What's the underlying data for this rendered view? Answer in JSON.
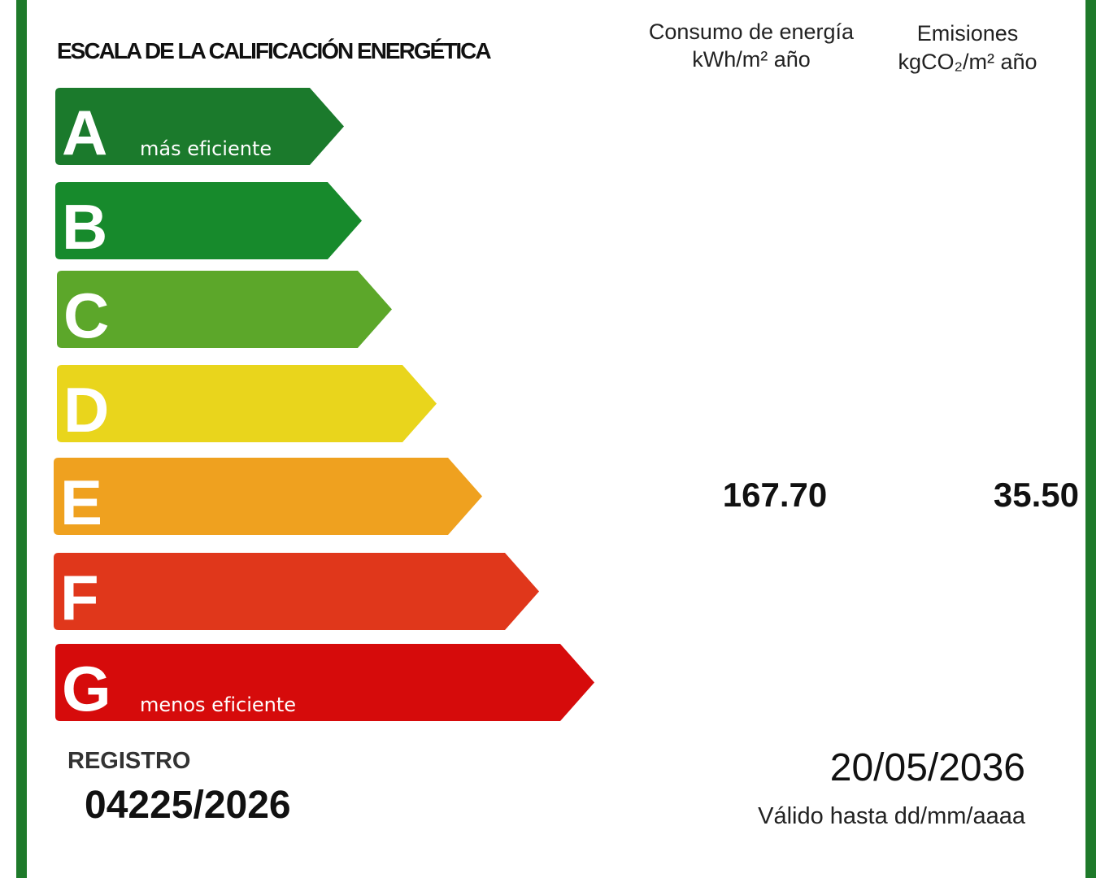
{
  "header": {
    "title": "ESCALA DE LA CALIFICACIÓN ENERGÉTICA",
    "consumption": {
      "label": "Consumo de energía",
      "unit": "kWh/m² año"
    },
    "emissions": {
      "label": "Emisiones",
      "unit": "kgCO₂/m² año"
    }
  },
  "grades": [
    {
      "letter": "A",
      "note": "más eficiente"
    },
    {
      "letter": "B"
    },
    {
      "letter": "C"
    },
    {
      "letter": "D"
    },
    {
      "letter": "E"
    },
    {
      "letter": "F"
    },
    {
      "letter": "G",
      "note": "menos eficiente"
    }
  ],
  "rating": {
    "consumption": "167.70",
    "emissions": "35.50"
  },
  "registry": {
    "label": "REGISTRO",
    "number": "04225/2026"
  },
  "validity": {
    "date": "20/05/2036",
    "label": "Válido hasta dd/mm/aaaa"
  }
}
